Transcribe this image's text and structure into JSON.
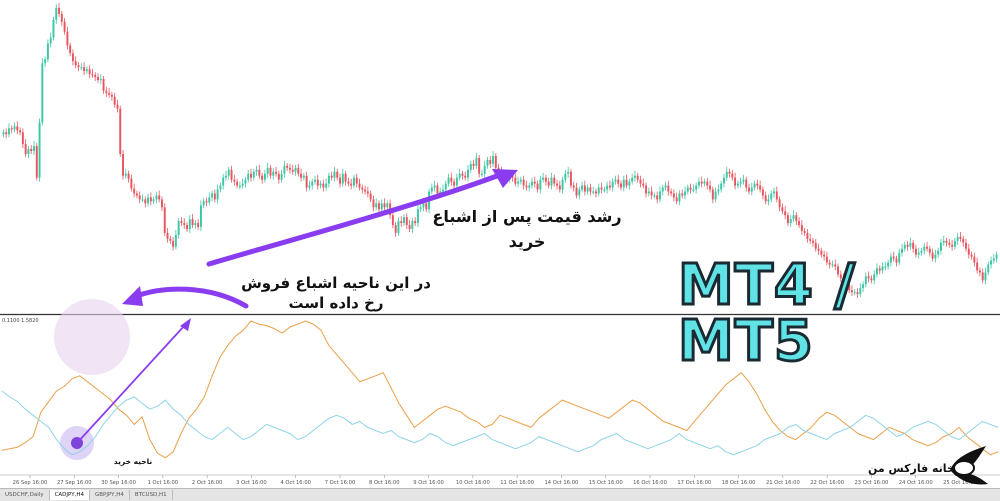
{
  "price_scale": {
    "upper_label": "0.1100 1.5820"
  },
  "annotations": {
    "growth": [
      "رشد قیمت پس از اشباع",
      "خرید"
    ],
    "oversold": [
      "در این ناحیه اشباع فروش",
      "رخ داده است"
    ],
    "buy_zone": "ناحیه خرید"
  },
  "badge": {
    "text": "MT4 / MT5"
  },
  "logo": {
    "text": "خانه فارکس من",
    "icon": "feather-pen-icon"
  },
  "x_axis": {
    "dates": [
      "26 Sep 16:00",
      "27 Sep 16:00",
      "30 Sep 16:00",
      "1 Oct 16:00",
      "2 Oct 16:00",
      "3 Oct 16:00",
      "4 Oct 16:00",
      "7 Oct 16:00",
      "8 Oct 16:00",
      "9 Oct 16:00",
      "10 Oct 16:00",
      "11 Oct 16:00",
      "14 Oct 16:00",
      "15 Oct 16:00",
      "16 Oct 16:00",
      "17 Oct 16:00",
      "18 Oct 16:00",
      "21 Oct 16:00",
      "22 Oct 16:00",
      "23 Oct 16:00",
      "24 Oct 16:00",
      "25 Oct 16:00"
    ]
  },
  "tabs": [
    {
      "label": "USDCHF,Daily",
      "active": false
    },
    {
      "label": "CADJPY,H4",
      "active": true
    },
    {
      "label": "GBPJPY,H4",
      "active": false
    },
    {
      "label": "BTCUSD,H1",
      "active": false
    }
  ],
  "colors": {
    "bull": "#3bc7a4",
    "bear": "#e8555f",
    "oscillator_blue": "#8fd3e8",
    "oscillator_orange": "#e9a04b",
    "arrow": "#8a3cf0",
    "badge_fill": "#5fe3e6"
  },
  "chart_data": [
    {
      "type": "candlestick",
      "symbol": "CADJPY,H4",
      "closes": [
        172,
        170,
        176,
        175,
        178,
        174,
        172,
        160,
        150,
        155,
        153,
        158,
        126,
        182,
        242,
        246,
        262,
        268,
        286,
        298,
        292,
        284,
        274,
        260,
        252,
        244,
        240,
        238,
        238,
        234,
        236,
        231,
        230,
        228,
        225,
        226,
        214,
        212,
        210,
        208,
        200,
        196,
        150,
        128,
        130,
        125,
        115,
        110,
        108,
        104,
        104,
        100,
        106,
        102,
        104,
        108,
        104,
        96,
        70,
        64,
        62,
        56,
        68,
        82,
        80,
        78,
        74,
        84,
        78,
        80,
        76,
        98,
        102,
        101,
        106,
        110,
        104,
        114,
        118,
        126,
        128,
        134,
        124,
        122,
        118,
        118,
        120,
        124,
        130,
        126,
        132,
        134,
        128,
        124,
        130,
        136,
        128,
        132,
        130,
        124,
        130,
        138,
        136,
        134,
        132,
        136,
        130,
        126,
        128,
        116,
        118,
        122,
        124,
        118,
        120,
        116,
        120,
        128,
        126,
        132,
        126,
        120,
        130,
        122,
        120,
        118,
        126,
        120,
        116,
        114,
        112,
        110,
        104,
        96,
        100,
        94,
        100,
        96,
        100,
        88,
        78,
        70,
        82,
        80,
        86,
        78,
        74,
        82,
        80,
        94,
        96,
        100,
        94,
        112,
        116,
        118,
        110,
        112,
        114,
        120,
        126,
        122,
        118,
        126,
        130,
        128,
        126,
        134,
        140,
        138,
        146,
        130,
        130,
        138,
        144,
        140,
        148,
        136,
        132,
        130,
        126,
        124,
        128,
        126,
        120,
        122,
        124,
        118,
        116,
        118,
        122,
        120,
        114,
        124,
        126,
        122,
        118,
        126,
        120,
        118,
        114,
        124,
        130,
        132,
        118,
        116,
        108,
        114,
        118,
        112,
        116,
        112,
        112,
        110,
        116,
        114,
        114,
        118,
        116,
        122,
        124,
        120,
        116,
        124,
        118,
        122,
        126,
        128,
        124,
        120,
        118,
        110,
        112,
        108,
        108,
        104,
        112,
        116,
        118,
        112,
        110,
        106,
        102,
        110,
        108,
        112,
        116,
        114,
        114,
        118,
        122,
        120,
        122,
        118,
        114,
        104,
        112,
        114,
        120,
        126,
        132,
        130,
        126,
        118,
        120,
        122,
        124,
        116,
        112,
        116,
        120,
        118,
        114,
        108,
        102,
        104,
        110,
        112,
        104,
        96,
        92,
        88,
        80,
        84,
        88,
        82,
        78,
        72,
        70,
        64,
        62,
        60,
        54,
        52,
        48,
        46,
        40,
        38,
        38,
        36,
        28,
        24,
        20,
        18,
        12,
        10,
        10,
        8,
        14,
        18,
        26,
        24,
        22,
        28,
        34,
        32,
        36,
        36,
        40,
        46,
        44,
        40,
        50,
        54,
        58,
        56,
        60,
        54,
        48,
        50,
        52,
        56,
        54,
        50,
        44,
        48,
        52,
        60,
        62,
        60,
        58,
        56,
        62,
        66,
        64,
        60,
        54,
        48,
        46,
        40,
        32,
        30,
        22,
        30,
        38,
        42,
        44,
        48
      ]
    },
    {
      "type": "line",
      "series": [
        {
          "values": [
            13,
            14,
            15,
            18,
            22,
            38,
            45,
            52,
            55,
            60,
            62,
            58,
            54,
            50,
            46,
            40,
            36,
            30,
            35,
            20,
            11,
            8,
            12,
            24,
            34,
            40,
            48,
            62,
            74,
            82,
            88,
            92,
            98,
            96,
            95,
            93,
            90,
            94,
            96,
            98,
            96,
            92,
            82,
            76,
            70,
            64,
            58,
            60,
            62,
            64,
            54,
            44,
            36,
            28,
            32,
            36,
            40,
            42,
            40,
            38,
            34,
            32,
            28,
            30,
            36,
            34,
            32,
            30,
            28,
            34,
            38,
            42,
            46,
            44,
            42,
            40,
            38,
            36,
            34,
            38,
            42,
            46,
            44,
            40,
            36,
            32,
            30,
            28,
            26,
            32,
            38,
            44,
            50,
            56,
            60,
            64,
            58,
            50,
            40,
            32,
            26,
            22,
            20,
            24,
            28,
            34,
            38,
            36,
            32,
            28,
            24,
            22,
            20,
            24,
            28,
            26,
            24,
            20,
            18,
            16,
            18,
            22,
            24,
            28,
            22,
            18,
            14,
            10,
            12
          ]
        },
        {
          "values": [
            52,
            48,
            45,
            40,
            36,
            32,
            28,
            20,
            14,
            10,
            12,
            16,
            22,
            30,
            36,
            42,
            46,
            48,
            44,
            40,
            42,
            46,
            40,
            36,
            30,
            26,
            22,
            20,
            24,
            28,
            24,
            20,
            22,
            26,
            30,
            28,
            26,
            24,
            20,
            22,
            26,
            30,
            34,
            36,
            34,
            30,
            32,
            28,
            26,
            24,
            26,
            22,
            20,
            18,
            20,
            24,
            22,
            18,
            16,
            18,
            20,
            22,
            24,
            20,
            18,
            16,
            14,
            16,
            18,
            22,
            20,
            18,
            16,
            14,
            12,
            14,
            16,
            20,
            22,
            24,
            20,
            18,
            16,
            14,
            16,
            18,
            20,
            24,
            20,
            18,
            16,
            14,
            16,
            12,
            10,
            12,
            14,
            16,
            20,
            22,
            24,
            28,
            30,
            26,
            24,
            22,
            20,
            24,
            26,
            28,
            32,
            36,
            34,
            30,
            26,
            22,
            24,
            28,
            30,
            32,
            30,
            26,
            22,
            20,
            24,
            28,
            32,
            30,
            28
          ]
        }
      ]
    }
  ]
}
